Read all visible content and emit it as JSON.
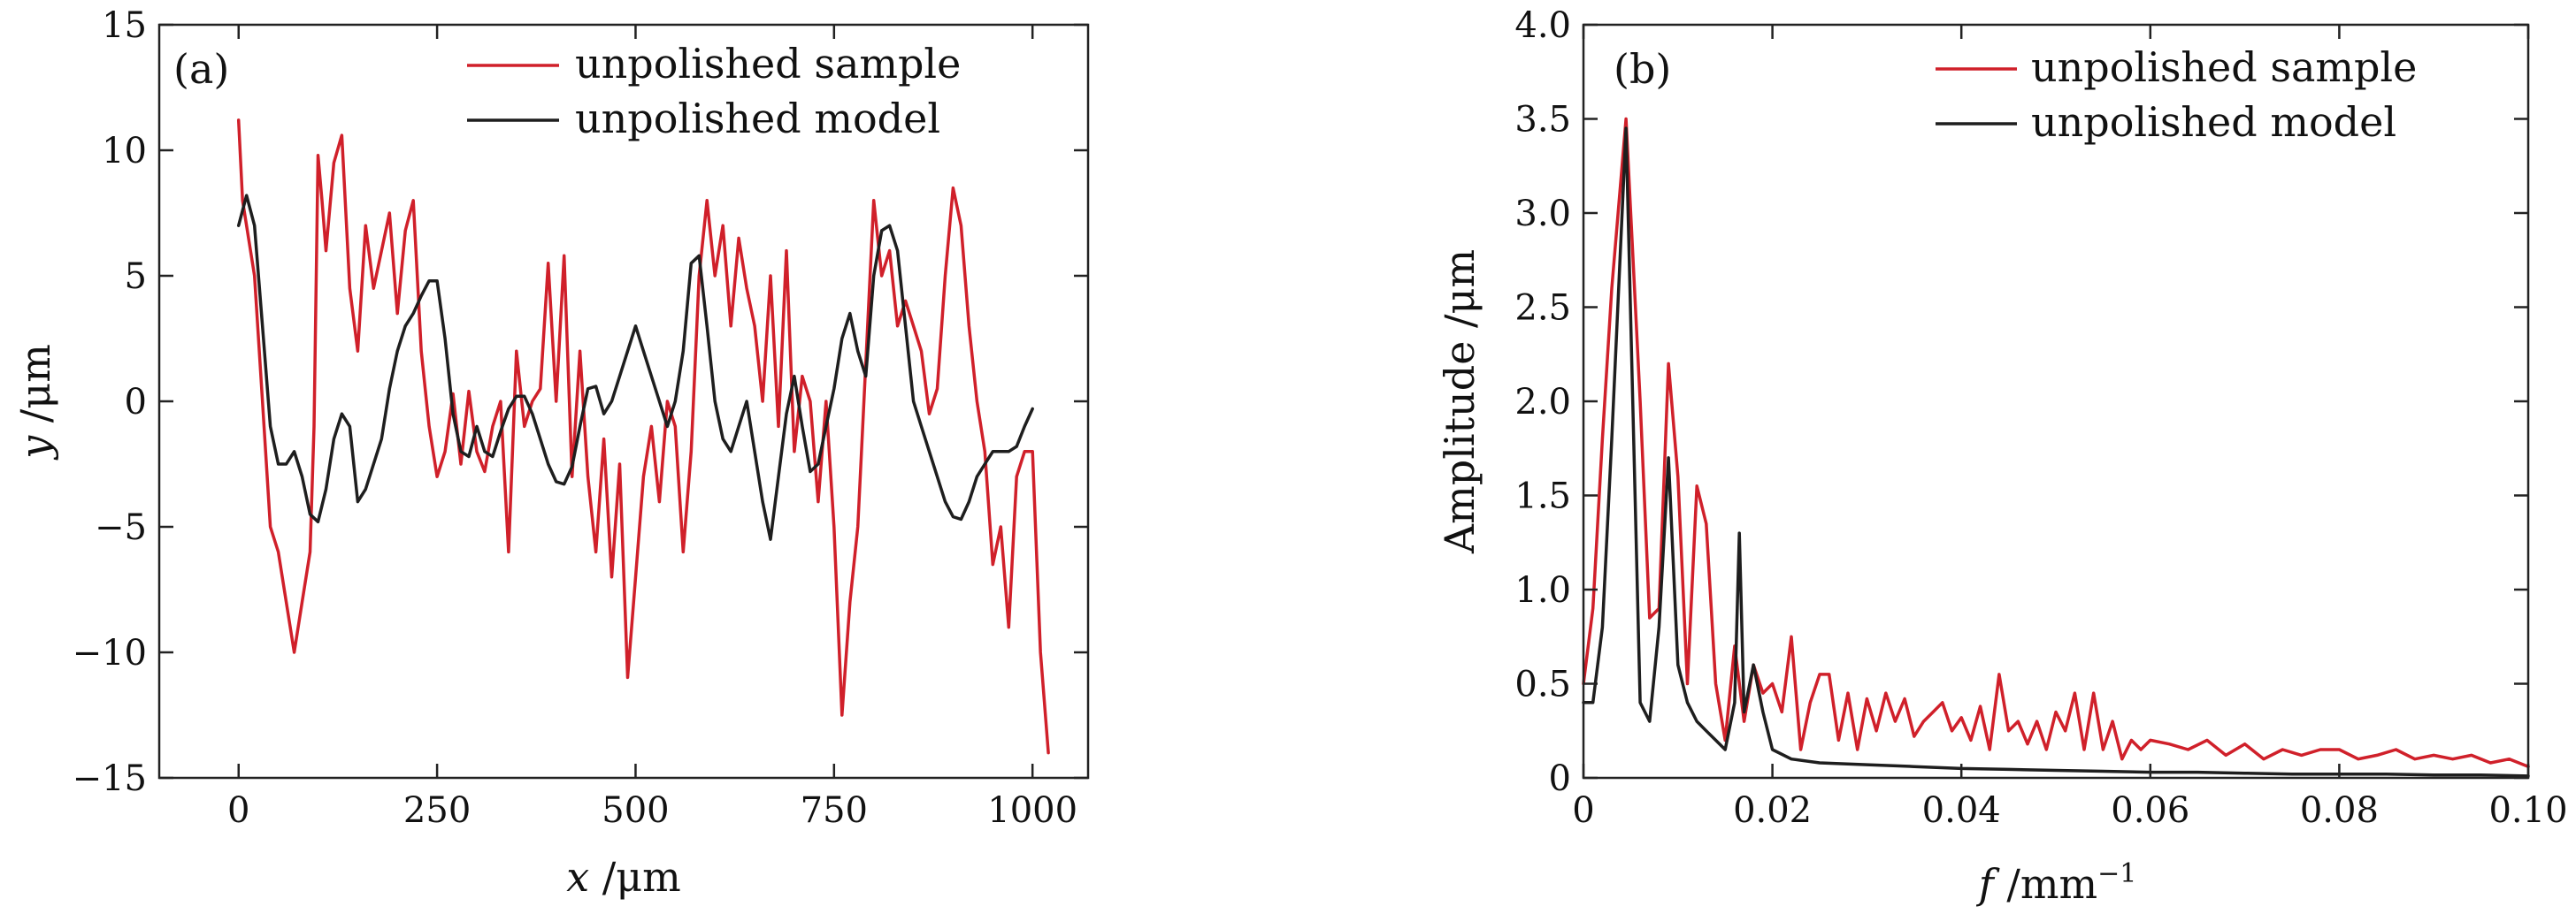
{
  "chart_data": [
    {
      "panel": "(a)",
      "type": "line",
      "xlabel_var": "x",
      "xlabel_unit": " /μm",
      "ylabel_var": "y",
      "ylabel_unit": " /μm",
      "xlim": [
        -100,
        1070
      ],
      "ylim": [
        -15,
        15
      ],
      "xticks": [
        0,
        250,
        500,
        750,
        1000
      ],
      "xtick_labels": [
        "0",
        "250",
        "500",
        "750",
        "1000"
      ],
      "yticks": [
        15,
        10,
        5,
        0,
        -5,
        -10,
        -15
      ],
      "ytick_labels": [
        "15",
        "10",
        "5",
        "0",
        "−5",
        "−10",
        "−15"
      ],
      "legend_position": "top-right",
      "series": [
        {
          "name": "unpolished sample",
          "color": "#d0202a",
          "x": [
            0,
            5,
            10,
            15,
            20,
            30,
            40,
            50,
            60,
            70,
            80,
            90,
            95,
            100,
            105,
            110,
            120,
            130,
            140,
            150,
            160,
            170,
            180,
            190,
            200,
            210,
            220,
            230,
            240,
            250,
            260,
            270,
            280,
            290,
            300,
            310,
            320,
            330,
            340,
            350,
            360,
            370,
            380,
            390,
            400,
            410,
            420,
            430,
            440,
            450,
            460,
            470,
            480,
            490,
            500,
            510,
            520,
            530,
            540,
            550,
            560,
            570,
            580,
            590,
            600,
            610,
            620,
            630,
            640,
            650,
            660,
            670,
            680,
            690,
            700,
            710,
            720,
            730,
            740,
            750,
            760,
            770,
            780,
            790,
            800,
            810,
            820,
            830,
            840,
            850,
            860,
            870,
            880,
            890,
            900,
            910,
            920,
            930,
            940,
            950,
            960,
            970,
            980,
            990,
            1000,
            1010,
            1020
          ],
          "y": [
            11.2,
            8,
            7,
            6,
            5,
            0,
            -5,
            -6,
            -8,
            -10,
            -8,
            -6,
            -1,
            9.8,
            8,
            6,
            9.5,
            10.6,
            4.5,
            2,
            7,
            4.5,
            6,
            7.5,
            3.5,
            6.8,
            8,
            2,
            -1,
            -3,
            -2,
            0.3,
            -2.5,
            0.4,
            -2,
            -2.8,
            -1,
            0,
            -6,
            2,
            -1,
            0,
            0.5,
            5.5,
            0,
            5.8,
            -3,
            2,
            -3,
            -6,
            -1.5,
            -7,
            -2.5,
            -11,
            -7,
            -3,
            -1,
            -4,
            0,
            -1,
            -6,
            -2,
            5,
            8,
            5,
            7,
            3,
            6.5,
            4.5,
            3,
            0,
            5,
            -1,
            6,
            -2,
            1,
            0,
            -4,
            0,
            -5,
            -12.5,
            -8,
            -5,
            1.5,
            8,
            5,
            6,
            3,
            4,
            3,
            2,
            -0.5,
            0.5,
            5,
            8.5,
            7,
            3,
            0,
            -2,
            -6.5,
            -5,
            -9,
            -3,
            -2,
            -2,
            -10,
            -14
          ]
        },
        {
          "name": "unpolished model",
          "color": "#1e1e1e",
          "x": [
            0,
            10,
            20,
            30,
            40,
            50,
            60,
            70,
            80,
            90,
            100,
            110,
            120,
            130,
            140,
            150,
            160,
            170,
            180,
            190,
            200,
            210,
            220,
            230,
            240,
            250,
            260,
            270,
            280,
            290,
            300,
            310,
            320,
            330,
            340,
            350,
            360,
            370,
            380,
            390,
            400,
            410,
            420,
            430,
            440,
            450,
            460,
            470,
            480,
            490,
            500,
            510,
            520,
            530,
            540,
            550,
            560,
            570,
            580,
            590,
            600,
            610,
            620,
            630,
            640,
            650,
            660,
            670,
            680,
            690,
            700,
            710,
            720,
            730,
            740,
            750,
            760,
            770,
            780,
            790,
            800,
            810,
            820,
            830,
            840,
            850,
            860,
            870,
            880,
            890,
            900,
            910,
            920,
            930,
            940,
            950,
            960,
            970,
            980,
            990,
            1000
          ],
          "y": [
            7,
            8.2,
            7,
            3,
            -1,
            -2.5,
            -2.5,
            -2,
            -3,
            -4.5,
            -4.8,
            -3.5,
            -1.5,
            -0.5,
            -1,
            -4,
            -3.5,
            -2.5,
            -1.5,
            0.5,
            2,
            3,
            3.5,
            4.2,
            4.8,
            4.8,
            2.5,
            -0.5,
            -2,
            -2.2,
            -1,
            -2,
            -2.2,
            -1.2,
            -0.3,
            0.2,
            0.2,
            -0.5,
            -1.5,
            -2.5,
            -3.2,
            -3.3,
            -2.6,
            -1,
            0.5,
            0.6,
            -0.5,
            0,
            1,
            2,
            3,
            2,
            1,
            0,
            -1,
            0,
            2,
            5.5,
            5.8,
            3,
            0,
            -1.5,
            -2,
            -1,
            0,
            -2,
            -4,
            -5.5,
            -3,
            -0.5,
            1,
            -1,
            -2.8,
            -2.5,
            -1,
            0.5,
            2.5,
            3.5,
            2,
            1,
            5,
            6.8,
            7,
            6,
            3,
            0,
            -1,
            -2,
            -3,
            -4,
            -4.6,
            -4.7,
            -4,
            -3,
            -2.5,
            -2,
            -2,
            -2,
            -1.8,
            -1,
            -0.3
          ]
        }
      ]
    },
    {
      "panel": "(b)",
      "type": "line",
      "xlabel_var": "f",
      "xlabel_unit": " /mm",
      "xlabel_sup": "−1",
      "ylabel": "Amplitude /μm",
      "xlim": [
        0,
        0.1
      ],
      "ylim": [
        0,
        4.0
      ],
      "xticks": [
        0,
        0.02,
        0.04,
        0.06,
        0.08,
        0.1
      ],
      "xtick_labels": [
        "0",
        "0.02",
        "0.04",
        "0.06",
        "0.08",
        "0.10"
      ],
      "yticks": [
        0,
        0.5,
        1.0,
        1.5,
        2.0,
        2.5,
        3.0,
        3.5,
        4.0
      ],
      "ytick_labels": [
        "0",
        "0.5",
        "1.0",
        "1.5",
        "2.0",
        "2.5",
        "3.0",
        "3.5",
        "4.0"
      ],
      "legend_position": "top-right",
      "series": [
        {
          "name": "unpolished sample",
          "color": "#d0202a",
          "x": [
            0,
            0.001,
            0.002,
            0.003,
            0.0045,
            0.006,
            0.007,
            0.008,
            0.009,
            0.01,
            0.011,
            0.012,
            0.013,
            0.014,
            0.015,
            0.016,
            0.017,
            0.018,
            0.019,
            0.02,
            0.021,
            0.022,
            0.023,
            0.024,
            0.025,
            0.026,
            0.027,
            0.028,
            0.029,
            0.03,
            0.031,
            0.032,
            0.033,
            0.034,
            0.035,
            0.036,
            0.037,
            0.038,
            0.039,
            0.04,
            0.041,
            0.042,
            0.043,
            0.044,
            0.045,
            0.046,
            0.047,
            0.048,
            0.049,
            0.05,
            0.051,
            0.052,
            0.053,
            0.054,
            0.055,
            0.056,
            0.057,
            0.058,
            0.059,
            0.06,
            0.062,
            0.064,
            0.066,
            0.068,
            0.07,
            0.072,
            0.074,
            0.076,
            0.078,
            0.08,
            0.082,
            0.084,
            0.086,
            0.088,
            0.09,
            0.092,
            0.094,
            0.096,
            0.098,
            0.1
          ],
          "y": [
            0.5,
            0.9,
            1.8,
            2.6,
            3.5,
            2.0,
            0.85,
            0.9,
            2.2,
            1.6,
            0.5,
            1.55,
            1.35,
            0.5,
            0.2,
            0.7,
            0.3,
            0.6,
            0.45,
            0.5,
            0.35,
            0.75,
            0.15,
            0.4,
            0.55,
            0.55,
            0.2,
            0.45,
            0.15,
            0.42,
            0.25,
            0.45,
            0.3,
            0.42,
            0.22,
            0.3,
            0.35,
            0.4,
            0.25,
            0.32,
            0.2,
            0.38,
            0.15,
            0.55,
            0.25,
            0.3,
            0.18,
            0.3,
            0.15,
            0.35,
            0.25,
            0.45,
            0.15,
            0.45,
            0.15,
            0.3,
            0.1,
            0.2,
            0.15,
            0.2,
            0.18,
            0.15,
            0.2,
            0.12,
            0.18,
            0.1,
            0.15,
            0.12,
            0.15,
            0.15,
            0.1,
            0.12,
            0.15,
            0.1,
            0.12,
            0.1,
            0.12,
            0.08,
            0.1,
            0.06
          ]
        },
        {
          "name": "unpolished model",
          "color": "#1e1e1e",
          "x": [
            0,
            0.001,
            0.002,
            0.003,
            0.0045,
            0.006,
            0.007,
            0.008,
            0.009,
            0.01,
            0.011,
            0.012,
            0.013,
            0.014,
            0.015,
            0.016,
            0.0165,
            0.017,
            0.018,
            0.019,
            0.02,
            0.022,
            0.025,
            0.03,
            0.035,
            0.04,
            0.045,
            0.05,
            0.055,
            0.06,
            0.065,
            0.07,
            0.075,
            0.08,
            0.085,
            0.09,
            0.095,
            0.1
          ],
          "y": [
            0.4,
            0.4,
            0.8,
            1.8,
            3.45,
            0.4,
            0.3,
            0.8,
            1.7,
            0.6,
            0.4,
            0.3,
            0.25,
            0.2,
            0.15,
            0.4,
            1.3,
            0.35,
            0.6,
            0.35,
            0.15,
            0.1,
            0.08,
            0.07,
            0.06,
            0.05,
            0.045,
            0.04,
            0.035,
            0.03,
            0.03,
            0.025,
            0.02,
            0.02,
            0.02,
            0.015,
            0.015,
            0.01
          ]
        }
      ]
    }
  ]
}
